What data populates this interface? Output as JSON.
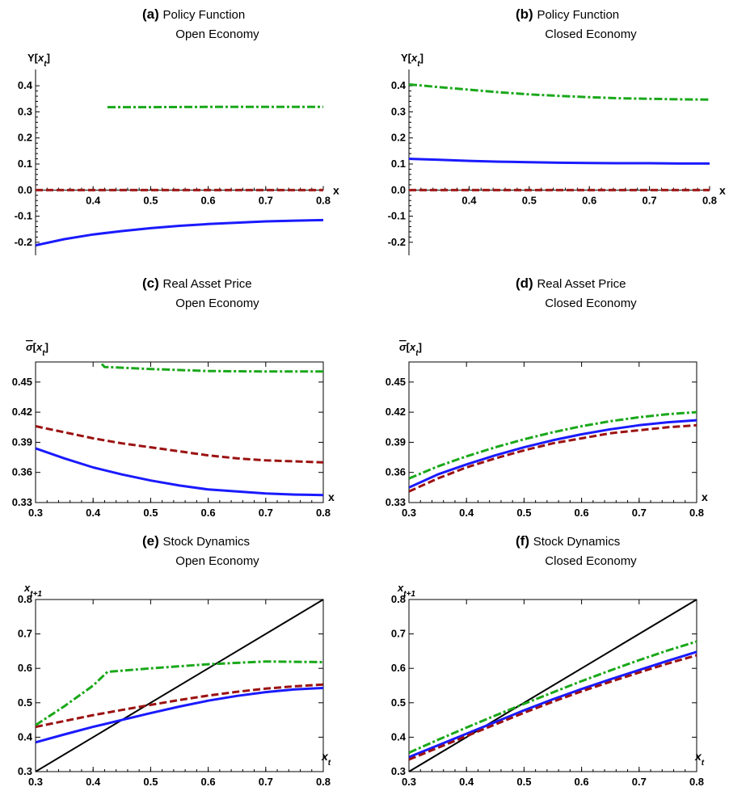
{
  "chart_data": [
    {
      "panel": "a",
      "type": "line",
      "label": "(a)",
      "title": "Policy Function",
      "subtitle": "Open Economy",
      "ylabel": "Y[x_t]",
      "xlabel": "x",
      "xlim": [
        0.3,
        0.8
      ],
      "ylim": [
        -0.25,
        0.45
      ],
      "xticks": [
        0.4,
        0.5,
        0.6,
        0.7,
        0.8
      ],
      "yticks": [
        -0.2,
        -0.1,
        0.0,
        0.1,
        0.2,
        0.3,
        0.4
      ],
      "ytick_labels": [
        "-0.2",
        "-0.1",
        "0.0",
        "0.1",
        "0.2",
        "0.3",
        "0.4"
      ],
      "axes_style": "crossing",
      "x_axis_at_y": 0.0,
      "series": [
        {
          "color": "#1a1aff",
          "dash": "solid",
          "x": [
            0.3,
            0.35,
            0.4,
            0.45,
            0.5,
            0.55,
            0.6,
            0.65,
            0.7,
            0.75,
            0.8
          ],
          "y": [
            -0.212,
            -0.188,
            -0.17,
            -0.157,
            -0.146,
            -0.137,
            -0.13,
            -0.125,
            -0.12,
            -0.117,
            -0.115
          ]
        },
        {
          "color": "#9b1111",
          "dash": "dashed",
          "x": [
            0.3,
            0.8
          ],
          "y": [
            0.0,
            0.0
          ]
        },
        {
          "color": "#1aa81a",
          "dash": "dashdot",
          "x": [
            0.425,
            0.5,
            0.6,
            0.7,
            0.8
          ],
          "y": [
            0.318,
            0.318,
            0.319,
            0.319,
            0.319
          ]
        }
      ]
    },
    {
      "panel": "b",
      "type": "line",
      "label": "(b)",
      "title": "Policy Function",
      "subtitle": "Closed Economy",
      "ylabel": "Y[x_t]",
      "xlabel": "x",
      "xlim": [
        0.3,
        0.8
      ],
      "ylim": [
        -0.25,
        0.45
      ],
      "xticks": [
        0.4,
        0.5,
        0.6,
        0.7,
        0.8
      ],
      "yticks": [
        -0.2,
        -0.1,
        0.0,
        0.1,
        0.2,
        0.3,
        0.4
      ],
      "ytick_labels": [
        "-0.2",
        "-0.1",
        "0.0",
        "0.1",
        "0.2",
        "0.3",
        "0.4"
      ],
      "axes_style": "crossing",
      "x_axis_at_y": 0.0,
      "series": [
        {
          "color": "#1a1aff",
          "dash": "solid",
          "x": [
            0.3,
            0.35,
            0.4,
            0.45,
            0.5,
            0.55,
            0.6,
            0.65,
            0.7,
            0.75,
            0.8
          ],
          "y": [
            0.12,
            0.116,
            0.112,
            0.109,
            0.107,
            0.105,
            0.104,
            0.103,
            0.103,
            0.102,
            0.102
          ]
        },
        {
          "color": "#9b1111",
          "dash": "dashed",
          "x": [
            0.3,
            0.8
          ],
          "y": [
            0.0,
            0.0
          ]
        },
        {
          "color": "#1aa81a",
          "dash": "dashdot",
          "x": [
            0.3,
            0.35,
            0.4,
            0.45,
            0.5,
            0.55,
            0.6,
            0.65,
            0.7,
            0.75,
            0.8
          ],
          "y": [
            0.405,
            0.395,
            0.385,
            0.375,
            0.367,
            0.361,
            0.356,
            0.352,
            0.35,
            0.348,
            0.347
          ]
        }
      ]
    },
    {
      "panel": "c",
      "type": "line",
      "label": "(c)",
      "title": "Real Asset Price",
      "subtitle": "Open Economy",
      "ylabel": "σ[x_t]",
      "xlabel": "x",
      "xlim": [
        0.3,
        0.8
      ],
      "ylim": [
        0.33,
        0.47
      ],
      "xticks": [
        0.3,
        0.4,
        0.5,
        0.6,
        0.7,
        0.8
      ],
      "yticks": [
        0.33,
        0.36,
        0.39,
        0.42,
        0.45
      ],
      "ytick_labels": [
        "0.33",
        "0.36",
        "0.39",
        "0.42",
        "0.45"
      ],
      "axes_style": "frame",
      "series": [
        {
          "color": "#1a1aff",
          "dash": "solid",
          "x": [
            0.3,
            0.35,
            0.4,
            0.45,
            0.5,
            0.55,
            0.6,
            0.65,
            0.7,
            0.75,
            0.8
          ],
          "y": [
            0.384,
            0.374,
            0.365,
            0.358,
            0.352,
            0.347,
            0.343,
            0.341,
            0.339,
            0.338,
            0.3375
          ]
        },
        {
          "color": "#9b1111",
          "dash": "dashed",
          "x": [
            0.3,
            0.35,
            0.4,
            0.45,
            0.5,
            0.55,
            0.6,
            0.65,
            0.7,
            0.75,
            0.8
          ],
          "y": [
            0.406,
            0.4,
            0.394,
            0.389,
            0.385,
            0.381,
            0.377,
            0.374,
            0.372,
            0.371,
            0.37
          ]
        },
        {
          "color": "#1aa81a",
          "dash": "dashdot",
          "x": [
            0.415,
            0.42,
            0.5,
            0.6,
            0.7,
            0.8
          ],
          "y": [
            0.468,
            0.465,
            0.463,
            0.461,
            0.4605,
            0.4605
          ]
        }
      ]
    },
    {
      "panel": "d",
      "type": "line",
      "label": "(d)",
      "title": "Real Asset Price",
      "subtitle": "Closed Economy",
      "ylabel": "σ[x_t]",
      "xlabel": "x",
      "xlim": [
        0.3,
        0.8
      ],
      "ylim": [
        0.33,
        0.47
      ],
      "xticks": [
        0.3,
        0.4,
        0.5,
        0.6,
        0.7,
        0.8
      ],
      "yticks": [
        0.33,
        0.36,
        0.39,
        0.42,
        0.45
      ],
      "ytick_labels": [
        "0.33",
        "0.36",
        "0.39",
        "0.42",
        "0.45"
      ],
      "axes_style": "frame",
      "series": [
        {
          "color": "#1a1aff",
          "dash": "solid",
          "x": [
            0.3,
            0.35,
            0.4,
            0.45,
            0.5,
            0.55,
            0.6,
            0.65,
            0.7,
            0.75,
            0.8
          ],
          "y": [
            0.345,
            0.358,
            0.368,
            0.377,
            0.385,
            0.392,
            0.398,
            0.403,
            0.407,
            0.41,
            0.412
          ]
        },
        {
          "color": "#9b1111",
          "dash": "dashed",
          "x": [
            0.3,
            0.35,
            0.4,
            0.45,
            0.5,
            0.55,
            0.6,
            0.65,
            0.7,
            0.75,
            0.8
          ],
          "y": [
            0.341,
            0.354,
            0.365,
            0.374,
            0.382,
            0.389,
            0.394,
            0.399,
            0.402,
            0.405,
            0.407
          ]
        },
        {
          "color": "#1aa81a",
          "dash": "dashdot",
          "x": [
            0.3,
            0.35,
            0.4,
            0.45,
            0.5,
            0.55,
            0.6,
            0.65,
            0.7,
            0.75,
            0.8
          ],
          "y": [
            0.354,
            0.366,
            0.376,
            0.385,
            0.393,
            0.4,
            0.406,
            0.411,
            0.415,
            0.418,
            0.42
          ]
        }
      ]
    },
    {
      "panel": "e",
      "type": "line",
      "label": "(e)",
      "title": "Stock Dynamics",
      "subtitle": "Open Economy",
      "ylabel": "x_{t+1}",
      "xlabel": "x_t",
      "xlim": [
        0.3,
        0.8
      ],
      "ylim": [
        0.3,
        0.8
      ],
      "xticks": [
        0.3,
        0.4,
        0.5,
        0.6,
        0.7,
        0.8
      ],
      "yticks": [
        0.3,
        0.4,
        0.5,
        0.6,
        0.7,
        0.8
      ],
      "ytick_labels": [
        "0.3",
        "0.4",
        "0.5",
        "0.6",
        "0.7",
        "0.8"
      ],
      "axes_style": "frame",
      "series": [
        {
          "color": "#000000",
          "dash": "solid",
          "x": [
            0.3,
            0.8
          ],
          "y": [
            0.3,
            0.8
          ]
        },
        {
          "color": "#1a1aff",
          "dash": "solid",
          "x": [
            0.3,
            0.35,
            0.4,
            0.45,
            0.5,
            0.55,
            0.6,
            0.65,
            0.7,
            0.75,
            0.8
          ],
          "y": [
            0.385,
            0.408,
            0.43,
            0.45,
            0.47,
            0.489,
            0.506,
            0.52,
            0.531,
            0.539,
            0.543
          ]
        },
        {
          "color": "#9b1111",
          "dash": "dashed",
          "x": [
            0.3,
            0.35,
            0.4,
            0.45,
            0.5,
            0.55,
            0.6,
            0.65,
            0.7,
            0.75,
            0.8
          ],
          "y": [
            0.43,
            0.447,
            0.464,
            0.479,
            0.494,
            0.508,
            0.521,
            0.532,
            0.541,
            0.548,
            0.553
          ]
        },
        {
          "color": "#1aa81a",
          "dash": "dashdot",
          "x": [
            0.3,
            0.35,
            0.4,
            0.425,
            0.5,
            0.6,
            0.7,
            0.8
          ],
          "y": [
            0.435,
            0.49,
            0.55,
            0.59,
            0.6,
            0.612,
            0.62,
            0.618
          ]
        }
      ]
    },
    {
      "panel": "f",
      "type": "line",
      "label": "(f)",
      "title": "Stock Dynamics",
      "subtitle": "Closed Economy",
      "ylabel": "x_{t+1}",
      "xlabel": "x_t",
      "xlim": [
        0.3,
        0.8
      ],
      "ylim": [
        0.3,
        0.8
      ],
      "xticks": [
        0.3,
        0.4,
        0.5,
        0.6,
        0.7,
        0.8
      ],
      "yticks": [
        0.3,
        0.4,
        0.5,
        0.6,
        0.7,
        0.8
      ],
      "ytick_labels": [
        "0.3",
        "0.4",
        "0.5",
        "0.6",
        "0.7",
        "0.8"
      ],
      "axes_style": "frame",
      "series": [
        {
          "color": "#000000",
          "dash": "solid",
          "x": [
            0.3,
            0.8
          ],
          "y": [
            0.3,
            0.8
          ]
        },
        {
          "color": "#1a1aff",
          "dash": "solid",
          "x": [
            0.3,
            0.35,
            0.4,
            0.45,
            0.5,
            0.55,
            0.6,
            0.65,
            0.7,
            0.75,
            0.8
          ],
          "y": [
            0.342,
            0.376,
            0.41,
            0.444,
            0.478,
            0.51,
            0.54,
            0.568,
            0.595,
            0.622,
            0.648
          ]
        },
        {
          "color": "#9b1111",
          "dash": "dashed",
          "x": [
            0.3,
            0.35,
            0.4,
            0.45,
            0.5,
            0.55,
            0.6,
            0.65,
            0.7,
            0.75,
            0.8
          ],
          "y": [
            0.335,
            0.369,
            0.403,
            0.437,
            0.471,
            0.503,
            0.533,
            0.561,
            0.588,
            0.614,
            0.638
          ]
        },
        {
          "color": "#1aa81a",
          "dash": "dashdot",
          "x": [
            0.3,
            0.35,
            0.4,
            0.45,
            0.5,
            0.55,
            0.6,
            0.65,
            0.7,
            0.75,
            0.8
          ],
          "y": [
            0.355,
            0.392,
            0.428,
            0.463,
            0.497,
            0.53,
            0.563,
            0.594,
            0.624,
            0.652,
            0.678
          ]
        }
      ]
    }
  ]
}
